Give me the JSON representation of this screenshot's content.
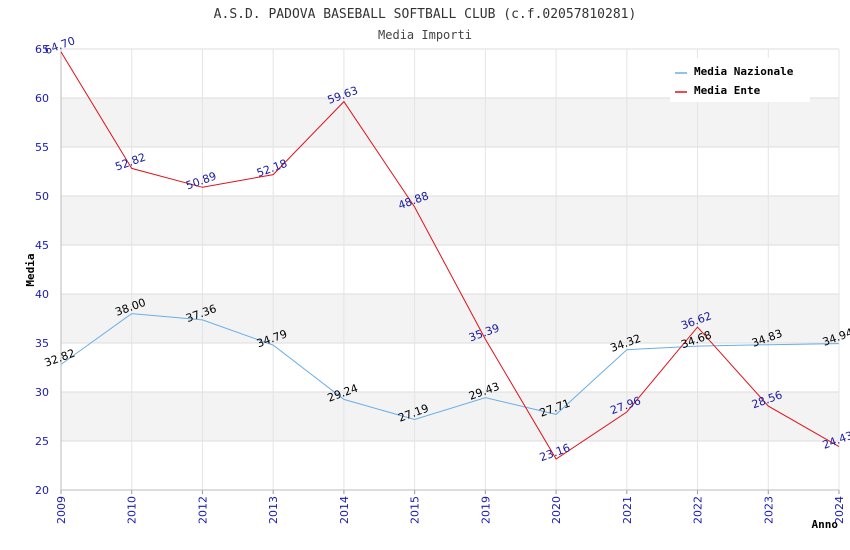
{
  "chart_data": {
    "type": "line",
    "title": "A.S.D. PADOVA BASEBALL SOFTBALL CLUB (c.f.02057810281)",
    "subtitle": "Media Importi",
    "xlabel": "Anno",
    "ylabel": "Media",
    "ylim": [
      20,
      65
    ],
    "yticks": [
      "20",
      "25",
      "30",
      "35",
      "40",
      "45",
      "50",
      "55",
      "60",
      "65"
    ],
    "categories": [
      "2009",
      "2010",
      "2012",
      "2013",
      "2014",
      "2015",
      "2019",
      "2020",
      "2021",
      "2022",
      "2023",
      "2024"
    ],
    "legend_position": "top-right",
    "series": [
      {
        "name": "Media Nazionale",
        "color": "#6aaee8",
        "label_color": "#000000",
        "values": [
          32.82,
          38.0,
          37.36,
          34.79,
          29.24,
          27.19,
          29.43,
          27.71,
          34.32,
          34.68,
          34.83,
          34.94
        ],
        "labels": [
          "32.82",
          "38.00",
          "37.36",
          "34.79",
          "29.24",
          "27.19",
          "29.43",
          "27.71",
          "34.32",
          "34.68",
          "34.83",
          "34.94"
        ]
      },
      {
        "name": "Media Ente",
        "color": "#e0101a",
        "label_color": "#1a1aa0",
        "values": [
          64.7,
          52.82,
          50.89,
          52.18,
          59.63,
          48.88,
          35.39,
          23.16,
          27.96,
          36.62,
          28.56,
          24.43
        ],
        "labels": [
          "64.70",
          "52.82",
          "50.89",
          "52.18",
          "59.63",
          "48.88",
          "35.39",
          "23.16",
          "27.96",
          "36.62",
          "28.56",
          "24.43"
        ]
      }
    ]
  }
}
